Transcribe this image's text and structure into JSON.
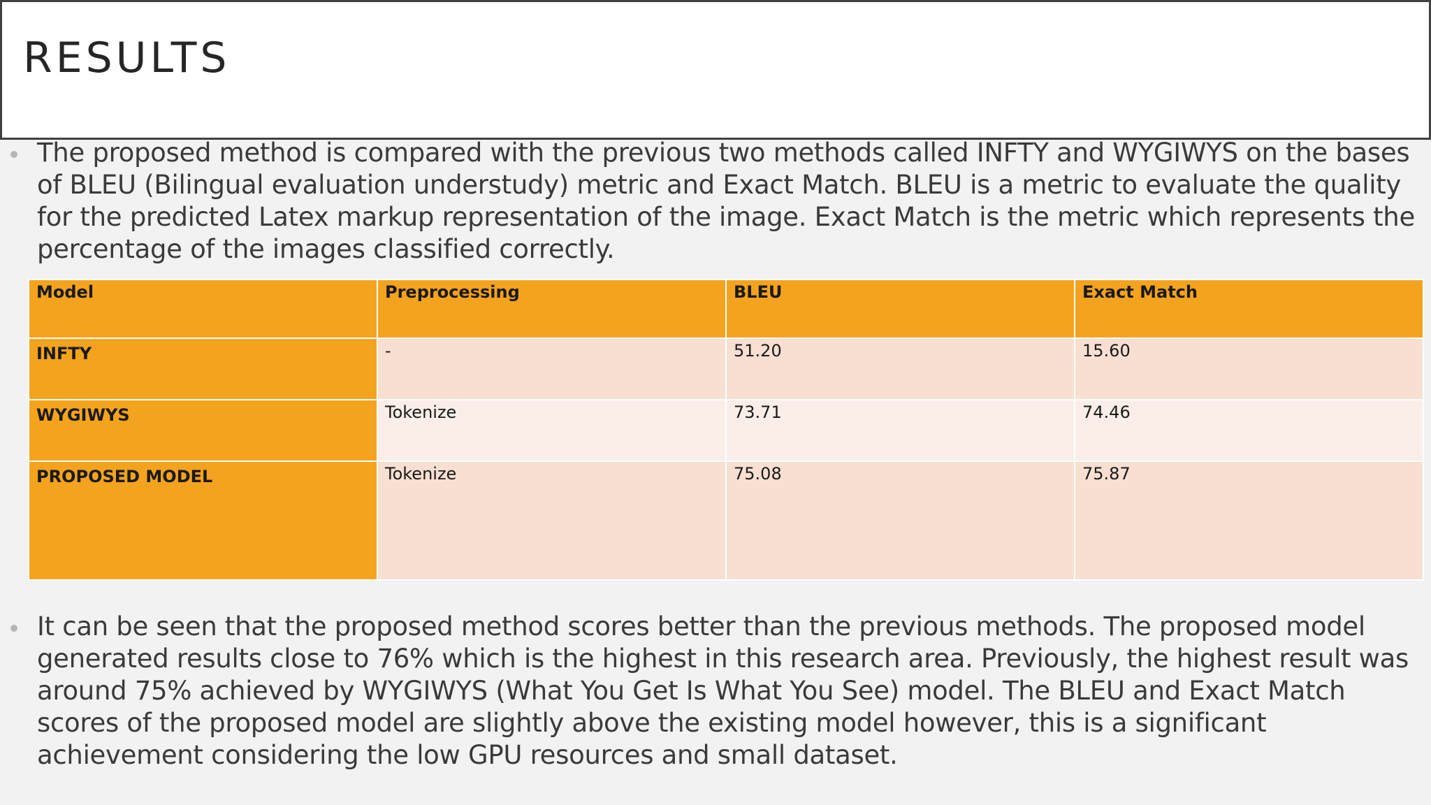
{
  "slide": {
    "title": "RESULTS",
    "bullet1": "The proposed method is compared with the previous two methods called INFTY and WYGIWYS on the bases of BLEU (Bilingual evaluation understudy) metric and Exact Match. BLEU is a metric to evaluate the quality for the predicted Latex markup representation of the image. Exact Match is the metric which represents the percentage of the images classified correctly.",
    "bullet2": "It can be seen that the proposed method scores better than the previous methods. The proposed model generated results close to 76% which is the highest in this research area. Previously, the highest result was around 75% achieved by WYGIWYS (What You Get Is What You See) model. The BLEU and Exact Match scores of the proposed model are slightly above the existing model however, this is a significant achievement considering the low GPU resources and small dataset."
  },
  "table": {
    "headers": [
      "Model",
      "Preprocessing",
      "BLEU",
      "Exact Match"
    ],
    "rows": [
      [
        "INFTY",
        "-",
        "51.20",
        "15.60"
      ],
      [
        "WYGIWYS",
        "Tokenize",
        "73.71",
        "74.46"
      ],
      [
        "PROPOSED MODEL",
        "Tokenize",
        "75.08",
        "75.87"
      ]
    ]
  },
  "colors": {
    "header_orange": "#f4a31f",
    "row_light": "#f8dfd1",
    "row_lighter": "#fbeee8",
    "background": "#f3f2f2"
  }
}
